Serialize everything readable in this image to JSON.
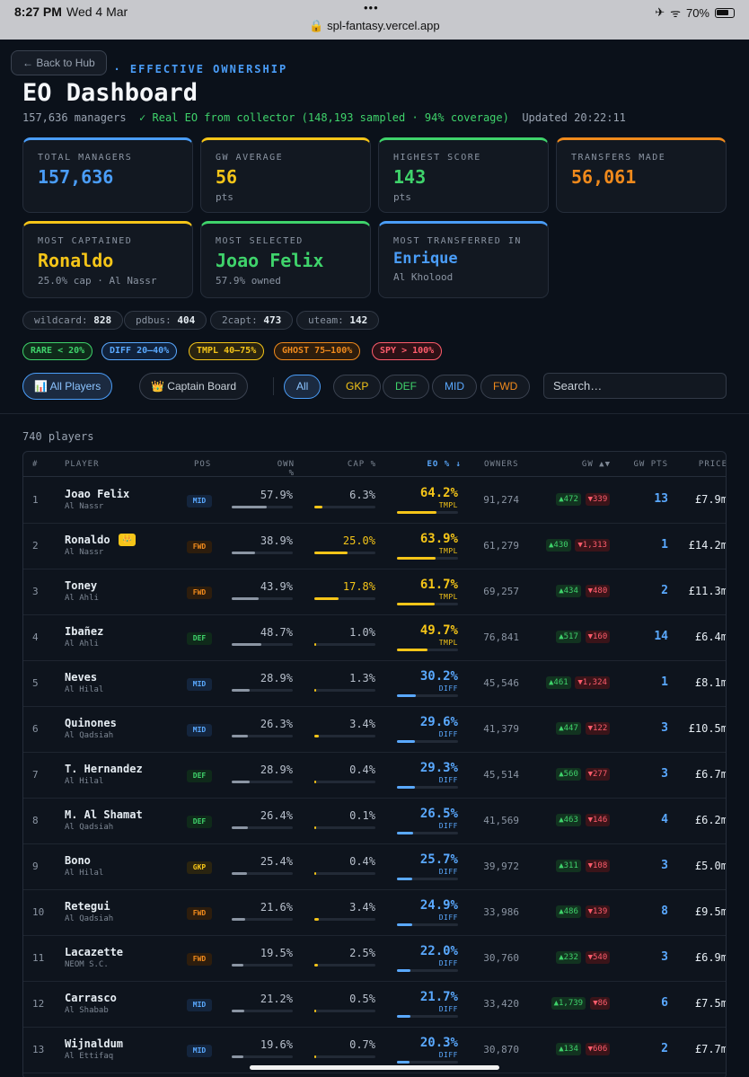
{
  "status": {
    "time": "8:27 PM",
    "date": "Wed 4 Mar",
    "url": "spl-fantasy.vercel.app",
    "battery": "70%",
    "dots": "•••"
  },
  "nav": {
    "back": "← Back to Hub"
  },
  "header": {
    "crumb": "… Y · GW24 · EFFECTIVE OWNERSHIP",
    "title": "EO Dashboard",
    "managers": "157,636 managers",
    "collector": "✓ Real EO from collector (148,193 sampled · 94% coverage)",
    "updated": "Updated 20:22:11"
  },
  "stats": [
    {
      "label": "TOTAL MANAGERS",
      "value": "157,636",
      "unit": "",
      "color": "#4a9df8"
    },
    {
      "label": "GW AVERAGE",
      "value": "56",
      "unit": "pts",
      "color": "#f5c518"
    },
    {
      "label": "HIGHEST SCORE",
      "value": "143",
      "unit": "pts",
      "color": "#3fd36b"
    },
    {
      "label": "TRANSFERS MADE",
      "value": "56,061",
      "unit": "",
      "color": "#f08a1c"
    }
  ],
  "highlights": [
    {
      "label": "MOST CAPTAINED",
      "value": "Ronaldo",
      "sub": "25.0% cap · Al Nassr",
      "color": "#f5c518"
    },
    {
      "label": "MOST SELECTED",
      "value": "Joao Felix",
      "sub": "57.9% owned",
      "color": "#3fd36b"
    },
    {
      "label": "MOST TRANSFERRED IN",
      "value": "Enrique",
      "sub": "Al Kholood",
      "color": "#4a9df8"
    }
  ],
  "chips": [
    {
      "k": "wildcard:",
      "v": "828"
    },
    {
      "k": "pdbus:",
      "v": "404"
    },
    {
      "k": "2capt:",
      "v": "473"
    },
    {
      "k": "uteam:",
      "v": "142"
    }
  ],
  "legend": [
    {
      "text": "RARE < 20%",
      "color": "#3fd36b",
      "bg": "#0f2a1a"
    },
    {
      "text": "DIFF 20–40%",
      "color": "#5aa9ff",
      "bg": "#10213a"
    },
    {
      "text": "TMPL 40–75%",
      "color": "#f5c518",
      "bg": "#2a2410"
    },
    {
      "text": "GHOST 75–100%",
      "color": "#f08a1c",
      "bg": "#2d1d0d"
    },
    {
      "text": "SPY > 100%",
      "color": "#ff5c6c",
      "bg": "#2d1116"
    }
  ],
  "tabs": {
    "all_players": "📊 All Players",
    "captain_board": "👑 Captain Board"
  },
  "positions": [
    "All",
    "GKP",
    "DEF",
    "MID",
    "FWD"
  ],
  "search": {
    "placeholder": "Search…"
  },
  "count": "740 players",
  "columns": [
    "#",
    "PLAYER",
    "POS",
    "OWN %",
    "CAP %",
    "EO % ↓",
    "OWNERS",
    "GW ▲▼",
    "GW PTS",
    "PRICE"
  ],
  "rows": [
    {
      "rank": "1",
      "name": "Joao Felix",
      "team": "Al Nassr",
      "pos": "MID",
      "own": "57.9%",
      "own_v": 57.9,
      "cap": "6.3%",
      "cap_v": 6.3,
      "eo": "64.2%",
      "eo_v": 64.2,
      "tag": "TMPL",
      "owners": "91,274",
      "in": "▲472",
      "out": "▼339",
      "pts": "13",
      "price": "£7.9m"
    },
    {
      "rank": "2",
      "name": "Ronaldo",
      "team": "Al Nassr",
      "pos": "FWD",
      "own": "38.9%",
      "own_v": 38.9,
      "cap": "25.0%",
      "cap_v": 25.0,
      "eo": "63.9%",
      "eo_v": 63.9,
      "tag": "TMPL",
      "owners": "61,279",
      "in": "▲430",
      "out": "▼1,313",
      "pts": "1",
      "price": "£14.2m",
      "captain": true
    },
    {
      "rank": "3",
      "name": "Toney",
      "team": "Al Ahli",
      "pos": "FWD",
      "own": "43.9%",
      "own_v": 43.9,
      "cap": "17.8%",
      "cap_v": 17.8,
      "eo": "61.7%",
      "eo_v": 61.7,
      "tag": "TMPL",
      "owners": "69,257",
      "in": "▲434",
      "out": "▼480",
      "pts": "2",
      "price": "£11.3m"
    },
    {
      "rank": "4",
      "name": "Ibañez",
      "team": "Al Ahli",
      "pos": "DEF",
      "own": "48.7%",
      "own_v": 48.7,
      "cap": "1.0%",
      "cap_v": 1.0,
      "eo": "49.7%",
      "eo_v": 49.7,
      "tag": "TMPL",
      "owners": "76,841",
      "in": "▲517",
      "out": "▼160",
      "pts": "14",
      "price": "£6.4m"
    },
    {
      "rank": "5",
      "name": "Neves",
      "team": "Al Hilal",
      "pos": "MID",
      "own": "28.9%",
      "own_v": 28.9,
      "cap": "1.3%",
      "cap_v": 1.3,
      "eo": "30.2%",
      "eo_v": 30.2,
      "tag": "DIFF",
      "owners": "45,546",
      "in": "▲461",
      "out": "▼1,324",
      "pts": "1",
      "price": "£8.1m"
    },
    {
      "rank": "6",
      "name": "Quinones",
      "team": "Al Qadsiah",
      "pos": "MID",
      "own": "26.3%",
      "own_v": 26.3,
      "cap": "3.4%",
      "cap_v": 3.4,
      "eo": "29.6%",
      "eo_v": 29.6,
      "tag": "DIFF",
      "owners": "41,379",
      "in": "▲447",
      "out": "▼122",
      "pts": "3",
      "price": "£10.5m"
    },
    {
      "rank": "7",
      "name": "T. Hernandez",
      "team": "Al Hilal",
      "pos": "DEF",
      "own": "28.9%",
      "own_v": 28.9,
      "cap": "0.4%",
      "cap_v": 0.4,
      "eo": "29.3%",
      "eo_v": 29.3,
      "tag": "DIFF",
      "owners": "45,514",
      "in": "▲560",
      "out": "▼277",
      "pts": "3",
      "price": "£6.7m"
    },
    {
      "rank": "8",
      "name": "M. Al Shamat",
      "team": "Al Qadsiah",
      "pos": "DEF",
      "own": "26.4%",
      "own_v": 26.4,
      "cap": "0.1%",
      "cap_v": 0.1,
      "eo": "26.5%",
      "eo_v": 26.5,
      "tag": "DIFF",
      "owners": "41,569",
      "in": "▲463",
      "out": "▼146",
      "pts": "4",
      "price": "£6.2m"
    },
    {
      "rank": "9",
      "name": "Bono",
      "team": "Al Hilal",
      "pos": "GKP",
      "own": "25.4%",
      "own_v": 25.4,
      "cap": "0.4%",
      "cap_v": 0.4,
      "eo": "25.7%",
      "eo_v": 25.7,
      "tag": "DIFF",
      "owners": "39,972",
      "in": "▲311",
      "out": "▼108",
      "pts": "3",
      "price": "£5.0m"
    },
    {
      "rank": "10",
      "name": "Retegui",
      "team": "Al Qadsiah",
      "pos": "FWD",
      "own": "21.6%",
      "own_v": 21.6,
      "cap": "3.4%",
      "cap_v": 3.4,
      "eo": "24.9%",
      "eo_v": 24.9,
      "tag": "DIFF",
      "owners": "33,986",
      "in": "▲486",
      "out": "▼139",
      "pts": "8",
      "price": "£9.5m"
    },
    {
      "rank": "11",
      "name": "Lacazette",
      "team": "NEOM S.C.",
      "pos": "FWD",
      "own": "19.5%",
      "own_v": 19.5,
      "cap": "2.5%",
      "cap_v": 2.5,
      "eo": "22.0%",
      "eo_v": 22.0,
      "tag": "DIFF",
      "owners": "30,760",
      "in": "▲232",
      "out": "▼540",
      "pts": "3",
      "price": "£6.9m"
    },
    {
      "rank": "12",
      "name": "Carrasco",
      "team": "Al Shabab",
      "pos": "MID",
      "own": "21.2%",
      "own_v": 21.2,
      "cap": "0.5%",
      "cap_v": 0.5,
      "eo": "21.7%",
      "eo_v": 21.7,
      "tag": "DIFF",
      "owners": "33,420",
      "in": "▲1,739",
      "out": "▼86",
      "pts": "6",
      "price": "£7.5m"
    },
    {
      "rank": "13",
      "name": "Wijnaldum",
      "team": "Al Ettifaq",
      "pos": "MID",
      "own": "19.6%",
      "own_v": 19.6,
      "cap": "0.7%",
      "cap_v": 0.7,
      "eo": "20.3%",
      "eo_v": 20.3,
      "tag": "DIFF",
      "owners": "30,870",
      "in": "▲134",
      "out": "▼606",
      "pts": "2",
      "price": "£7.7m"
    }
  ]
}
